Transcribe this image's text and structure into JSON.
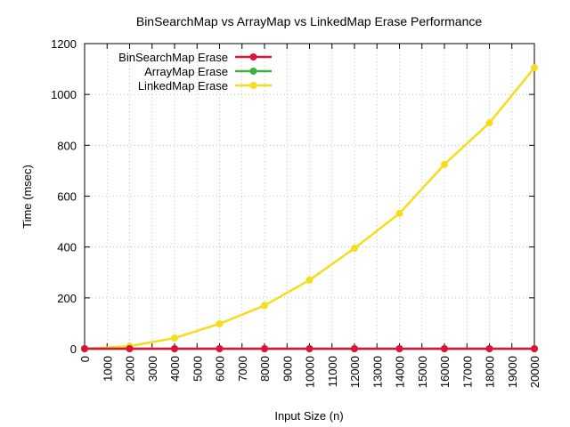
{
  "chart_data": {
    "type": "line",
    "title": "BinSearchMap vs ArrayMap vs LinkedMap Erase Performance",
    "xlabel": "Input Size (n)",
    "ylabel": "Time (msec)",
    "xlim": [
      0,
      20000
    ],
    "ylim": [
      0,
      1200
    ],
    "xticks": [
      0,
      1000,
      2000,
      3000,
      4000,
      5000,
      6000,
      7000,
      8000,
      9000,
      10000,
      11000,
      12000,
      13000,
      14000,
      15000,
      16000,
      17000,
      18000,
      19000,
      20000
    ],
    "yticks": [
      0,
      200,
      400,
      600,
      800,
      1000,
      1200
    ],
    "grid": true,
    "legend_position": "top-left",
    "x": [
      0,
      2000,
      4000,
      6000,
      8000,
      10000,
      12000,
      14000,
      16000,
      18000,
      20000
    ],
    "series": [
      {
        "name": "BinSearchMap Erase",
        "color": "#dc143c",
        "values": [
          0,
          0,
          0,
          0,
          0,
          0,
          0,
          0,
          0,
          0,
          0
        ]
      },
      {
        "name": "ArrayMap Erase",
        "color": "#3cb043",
        "values": [
          0,
          0,
          0,
          0,
          0,
          0,
          0,
          0,
          0,
          0,
          0
        ]
      },
      {
        "name": "LinkedMap Erase",
        "color": "#f5dd1c",
        "values": [
          0,
          10,
          42,
          98,
          170,
          270,
          395,
          532,
          725,
          888,
          1105
        ]
      }
    ]
  }
}
